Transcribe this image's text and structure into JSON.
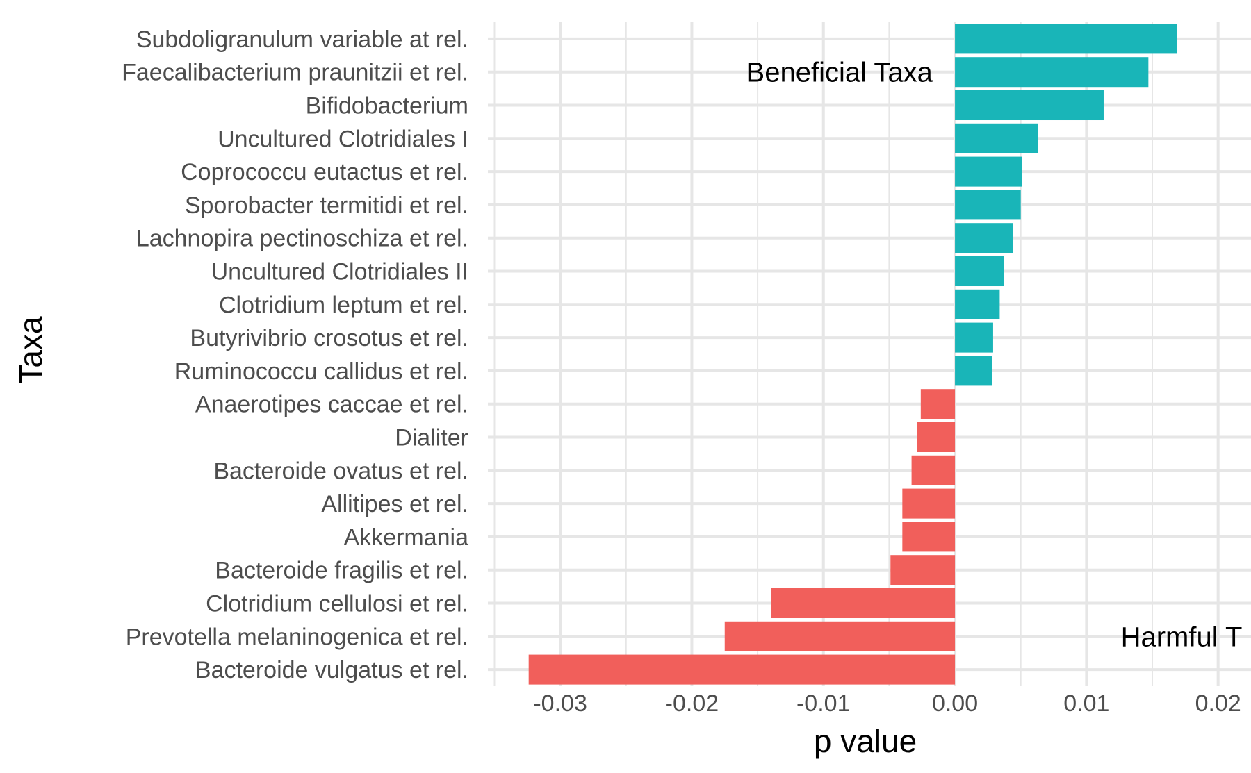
{
  "chart_data": {
    "type": "bar",
    "orientation": "horizontal",
    "title": "",
    "xlabel": "p value",
    "ylabel": "Taxa",
    "xlim": [
      -0.0355,
      0.0225
    ],
    "grid": true,
    "x_ticks": [
      -0.03,
      -0.02,
      -0.01,
      0.0,
      0.01,
      0.02
    ],
    "x_tick_labels": [
      "-0.03",
      "-0.02",
      "-0.01",
      "0.00",
      "0.01",
      "0.02"
    ],
    "categories": [
      "Subdoligranulum variable at rel.",
      "Faecalibacterium praunitzii et rel.",
      "Bifidobacterium",
      "Uncultured Clotridiales I",
      "Coprococcu eutactus et rel.",
      "Sporobacter termitidi et rel.",
      "Lachnopira pectinoschiza et rel.",
      "Uncultured Clotridiales II",
      "Clotridium leptum et rel.",
      "Butyrivibrio crosotus et rel.",
      "Ruminococcu callidus et rel.",
      "Anaerotipes caccae et rel.",
      "Dialiter",
      "Bacteroide ovatus et rel.",
      "Allitipes et rel.",
      "Akkermania",
      "Bacteroide fragilis et rel.",
      "Clotridium cellulosi et rel.",
      "Prevotella melaninogenica et rel.",
      "Bacteroide vulgatus et rel."
    ],
    "values": [
      0.0169,
      0.0147,
      0.0113,
      0.0063,
      0.0051,
      0.005,
      0.0044,
      0.0037,
      0.0034,
      0.0029,
      0.0028,
      -0.0026,
      -0.0029,
      -0.0033,
      -0.004,
      -0.004,
      -0.0049,
      -0.014,
      -0.0175,
      -0.0324
    ],
    "colors": {
      "positive": "#19b5b8",
      "negative": "#f15f5b",
      "grid": "#e6e6e6"
    },
    "annotations": [
      {
        "text": "Beneficial Taxa",
        "x": -0.0017,
        "y_category": "Faecalibacterium praunitzii et rel.",
        "anchor": "end"
      },
      {
        "text": "Harmful T",
        "x": 0.0126,
        "y_category": "Prevotella melaninogenica et rel.",
        "anchor": "start"
      }
    ]
  }
}
